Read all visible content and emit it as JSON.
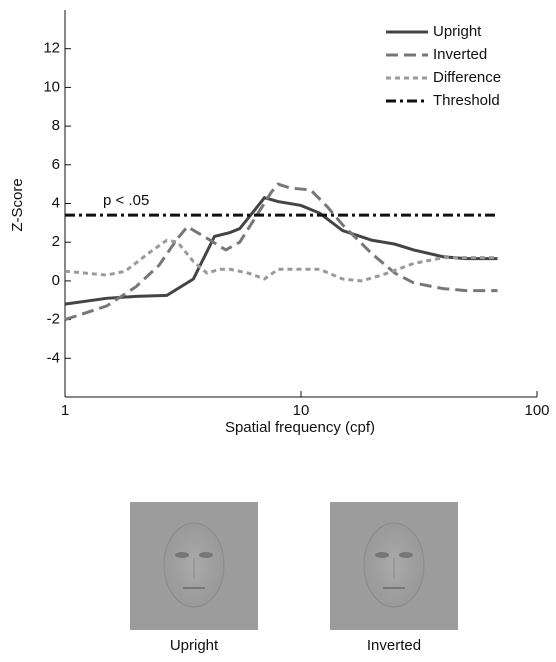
{
  "chart_data": {
    "type": "line",
    "xlabel": "Spatial frequency (cpf)",
    "ylabel": "Z-Score",
    "annotation": "p < .05",
    "xscale": "log",
    "xlim": [
      1,
      100
    ],
    "xticks": [
      1,
      10,
      100
    ],
    "ylim": [
      -6,
      14
    ],
    "yticks": [
      -4,
      -2,
      0,
      2,
      4,
      6,
      8,
      10,
      12
    ],
    "legend": "upper right",
    "series": [
      {
        "name": "Upright",
        "color": "#444444",
        "dash": "solid",
        "x": [
          1,
          1.5,
          2,
          2.7,
          3.5,
          4.3,
          5,
          5.5,
          6.5,
          7,
          8,
          10,
          12,
          15,
          20,
          25,
          30,
          40,
          50,
          68
        ],
        "values": [
          -1.2,
          -0.9,
          -0.8,
          -0.75,
          0.1,
          2.3,
          2.5,
          2.7,
          3.8,
          4.3,
          4.1,
          3.9,
          3.5,
          2.6,
          2.1,
          1.9,
          1.6,
          1.25,
          1.15,
          1.15
        ]
      },
      {
        "name": "Inverted",
        "color": "#777777",
        "dash": "dashed",
        "x": [
          1,
          1.5,
          2,
          2.5,
          3,
          3.3,
          4,
          4.8,
          5.5,
          6.5,
          7.5,
          8,
          9,
          11,
          13,
          15,
          20,
          25,
          30,
          40,
          50,
          68
        ],
        "values": [
          -2,
          -1.3,
          -0.3,
          0.8,
          2.2,
          2.8,
          2.2,
          1.6,
          2.0,
          3.4,
          4.6,
          5.0,
          4.8,
          4.7,
          3.8,
          2.9,
          1.4,
          0.4,
          -0.1,
          -0.4,
          -0.5,
          -0.5
        ]
      },
      {
        "name": "Difference",
        "color": "#9a9a9a",
        "dash": "dotted",
        "x": [
          1,
          1.5,
          1.8,
          2.3,
          2.7,
          3,
          3.5,
          4,
          4.5,
          5,
          6,
          7,
          8,
          10,
          12,
          15,
          18,
          22,
          30,
          40,
          68
        ],
        "values": [
          0.5,
          0.3,
          0.5,
          1.5,
          2.1,
          2.0,
          1.0,
          0.4,
          0.6,
          0.6,
          0.4,
          0.1,
          0.6,
          0.6,
          0.6,
          0.1,
          0.0,
          0.3,
          0.9,
          1.2,
          1.2
        ]
      },
      {
        "name": "Threshold",
        "color": "#111111",
        "dash": "dashdot",
        "x": [
          1,
          68
        ],
        "values": [
          3.4,
          3.4
        ]
      }
    ]
  },
  "panels": [
    {
      "label": "Upright"
    },
    {
      "label": "Inverted"
    }
  ]
}
